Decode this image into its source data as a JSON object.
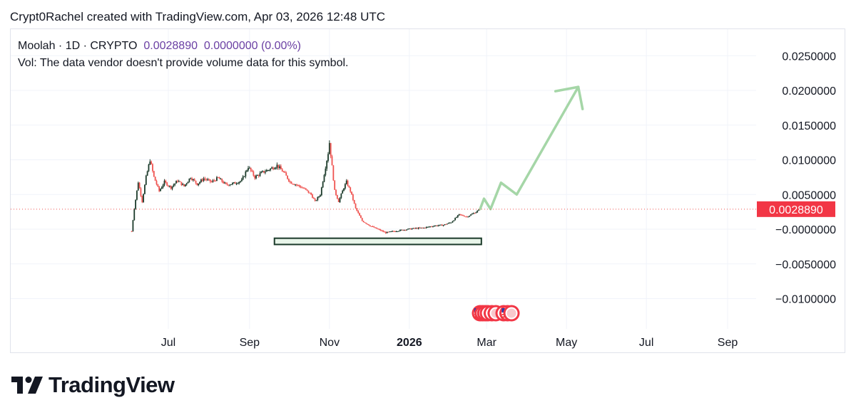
{
  "header": {
    "text": "Crypt0Rachel created with TradingView.com, Apr 03, 2026 12:48 UTC"
  },
  "legend": {
    "symbol": "Moolah · 1D · CRYPTO",
    "price": "0.0028890",
    "change": "0.0000000 (0.00%)",
    "volume_note": "Vol: The data vendor doesn't provide volume data for this symbol."
  },
  "logo": {
    "text": "TradingView"
  },
  "colors": {
    "up": "#26a69a",
    "down": "#ef5350",
    "dark_up": "#1b3a2a",
    "arrow": "#a5d6a7",
    "grid": "#f0f3fa",
    "price_line": "#ef5350",
    "price_label_bg": "#f23645"
  },
  "chart_data": {
    "type": "candlestick",
    "last_price_label": "0.0028890",
    "last_price": 0.002889,
    "y_ticks": [
      "0.0250000",
      "0.0200000",
      "0.0150000",
      "0.0100000",
      "0.0050000",
      "−0.0000000",
      "−0.0050000",
      "−0.0100000"
    ],
    "y_tick_values": [
      0.025,
      0.02,
      0.015,
      0.01,
      0.005,
      0,
      -0.005,
      -0.01
    ],
    "x_ticks": [
      {
        "label": "Jul",
        "date": "2025-07-01",
        "bold": false
      },
      {
        "label": "Sep",
        "date": "2025-09-01",
        "bold": false
      },
      {
        "label": "Nov",
        "date": "2025-11-01",
        "bold": false
      },
      {
        "label": "2026",
        "date": "2026-01-01",
        "bold": true
      },
      {
        "label": "Mar",
        "date": "2026-03-01",
        "bold": false
      },
      {
        "label": "May",
        "date": "2026-05-01",
        "bold": false
      },
      {
        "label": "Jul",
        "date": "2026-07-01",
        "bold": false
      },
      {
        "label": "Sep",
        "date": "2026-09-01",
        "bold": false
      }
    ],
    "price_path": [
      [
        "2025-06-03",
        -0.0003
      ],
      [
        "2025-06-05",
        0.003
      ],
      [
        "2025-06-08",
        0.0068
      ],
      [
        "2025-06-11",
        0.004
      ],
      [
        "2025-06-14",
        0.0075
      ],
      [
        "2025-06-17",
        0.01
      ],
      [
        "2025-06-20",
        0.0075
      ],
      [
        "2025-06-24",
        0.0055
      ],
      [
        "2025-06-28",
        0.0068
      ],
      [
        "2025-07-03",
        0.006
      ],
      [
        "2025-07-08",
        0.007
      ],
      [
        "2025-07-13",
        0.0062
      ],
      [
        "2025-07-18",
        0.0075
      ],
      [
        "2025-07-23",
        0.0065
      ],
      [
        "2025-07-28",
        0.0073
      ],
      [
        "2025-08-03",
        0.0068
      ],
      [
        "2025-08-08",
        0.0074
      ],
      [
        "2025-08-14",
        0.0064
      ],
      [
        "2025-08-20",
        0.0066
      ],
      [
        "2025-08-26",
        0.007
      ],
      [
        "2025-08-31",
        0.009
      ],
      [
        "2025-09-05",
        0.0075
      ],
      [
        "2025-09-11",
        0.0082
      ],
      [
        "2025-09-17",
        0.0087
      ],
      [
        "2025-09-22",
        0.0092
      ],
      [
        "2025-09-27",
        0.0082
      ],
      [
        "2025-10-02",
        0.0068
      ],
      [
        "2025-10-08",
        0.0063
      ],
      [
        "2025-10-13",
        0.0058
      ],
      [
        "2025-10-18",
        0.005
      ],
      [
        "2025-10-21",
        0.004
      ],
      [
        "2025-10-25",
        0.005
      ],
      [
        "2025-10-28",
        0.008
      ],
      [
        "2025-10-31",
        0.011
      ],
      [
        "2025-11-01",
        0.0125
      ],
      [
        "2025-11-03",
        0.009
      ],
      [
        "2025-11-05",
        0.0055
      ],
      [
        "2025-11-08",
        0.004
      ],
      [
        "2025-11-12",
        0.006
      ],
      [
        "2025-11-14",
        0.0068
      ],
      [
        "2025-11-17",
        0.0055
      ],
      [
        "2025-11-21",
        0.003
      ],
      [
        "2025-11-26",
        0.0012
      ],
      [
        "2025-12-02",
        0.0005
      ],
      [
        "2025-12-08",
        0.0
      ],
      [
        "2025-12-14",
        -0.0005
      ],
      [
        "2025-12-20",
        -0.0003
      ],
      [
        "2025-12-27",
        -0.0001
      ],
      [
        "2026-01-04",
        0.0001
      ],
      [
        "2026-01-12",
        0.0002
      ],
      [
        "2026-01-20",
        0.0005
      ],
      [
        "2026-01-27",
        0.0006
      ],
      [
        "2026-02-02",
        0.001
      ],
      [
        "2026-02-08",
        0.0021
      ],
      [
        "2026-02-14",
        0.0018
      ],
      [
        "2026-02-21",
        0.0025
      ],
      [
        "2026-02-24",
        0.0029
      ]
    ],
    "projection_arrow": [
      [
        "2026-02-24",
        0.0029
      ],
      [
        "2026-02-27",
        0.0044
      ],
      [
        "2026-03-04",
        0.0029
      ],
      [
        "2026-03-12",
        0.0067
      ],
      [
        "2026-03-24",
        0.005
      ],
      [
        "2026-05-10",
        0.0205
      ]
    ],
    "highlight_box": {
      "from": "2025-09-20",
      "to": "2026-02-25",
      "y_top": -0.0013,
      "y_bottom": -0.0022
    },
    "event_markers": [
      {
        "date": "2026-02-24",
        "type": "flag-us"
      },
      {
        "date": "2026-02-26",
        "type": "event"
      },
      {
        "date": "2026-02-28",
        "type": "event"
      },
      {
        "date": "2026-03-02",
        "type": "event"
      },
      {
        "date": "2026-03-05",
        "type": "event"
      },
      {
        "date": "2026-03-08",
        "type": "event"
      },
      {
        "date": "2026-03-14",
        "type": "event"
      },
      {
        "date": "2026-03-17",
        "type": "flag-us"
      },
      {
        "date": "2026-03-20",
        "type": "event"
      }
    ]
  }
}
